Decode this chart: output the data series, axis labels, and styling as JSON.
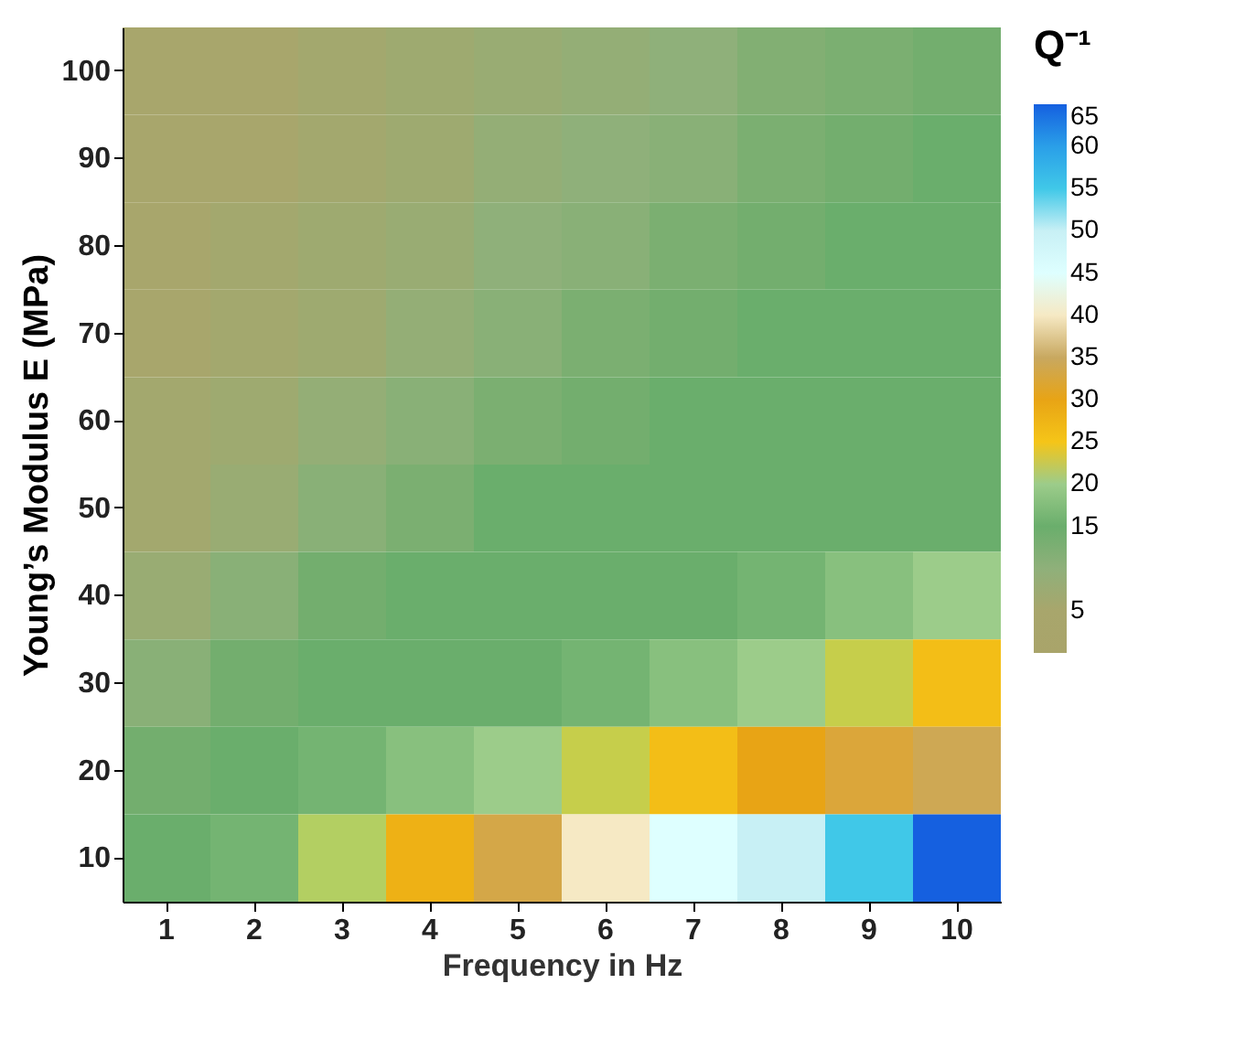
{
  "chart_data": {
    "type": "heatmap",
    "xlabel": "Frequency in Hz",
    "ylabel": "Young’s Modulus E (MPa)",
    "clabel": "Q⁻¹",
    "categories": [
      "1",
      "2",
      "3",
      "4",
      "5",
      "6",
      "7",
      "8",
      "9",
      "10"
    ],
    "y_categories": [
      "100",
      "90",
      "80",
      "70",
      "60",
      "50",
      "40",
      "30",
      "20",
      "10"
    ],
    "cells": [
      [
        5,
        5,
        6,
        7,
        8,
        9,
        10,
        12,
        13,
        14
      ],
      [
        5,
        5,
        6,
        7,
        9,
        10,
        11,
        13,
        14,
        15
      ],
      [
        5,
        6,
        7,
        8,
        10,
        11,
        13,
        14,
        15,
        15
      ],
      [
        5,
        6,
        7,
        9,
        11,
        13,
        14,
        15,
        15,
        15
      ],
      [
        6,
        7,
        9,
        11,
        13,
        14,
        15,
        15,
        15,
        15
      ],
      [
        6,
        8,
        11,
        13,
        15,
        15,
        15,
        15,
        15,
        15
      ],
      [
        8,
        11,
        14,
        15,
        15,
        15,
        15,
        16,
        18,
        20
      ],
      [
        11,
        14,
        15,
        15,
        15,
        16,
        18,
        20,
        23,
        26
      ],
      [
        14,
        15,
        16,
        18,
        20,
        23,
        26,
        30,
        32,
        34
      ],
      [
        15,
        16,
        22,
        28,
        33,
        40,
        45,
        50,
        55,
        65
      ]
    ],
    "clim": [
      0,
      65
    ],
    "cticks": [
      5,
      15,
      20,
      25,
      30,
      35,
      40,
      45,
      50,
      55,
      60,
      65
    ],
    "colors": [
      "#a9a46a",
      "#a8a66c",
      "#8fb07a",
      "#6aae6c",
      "#9ccc8a",
      "#f5c518",
      "#e8a415",
      "#c8a860",
      "#f6e9c4",
      "#ffffff",
      "#c8f0f5",
      "#40c8e8",
      "#2a9fe8",
      "#1560e0"
    ]
  }
}
